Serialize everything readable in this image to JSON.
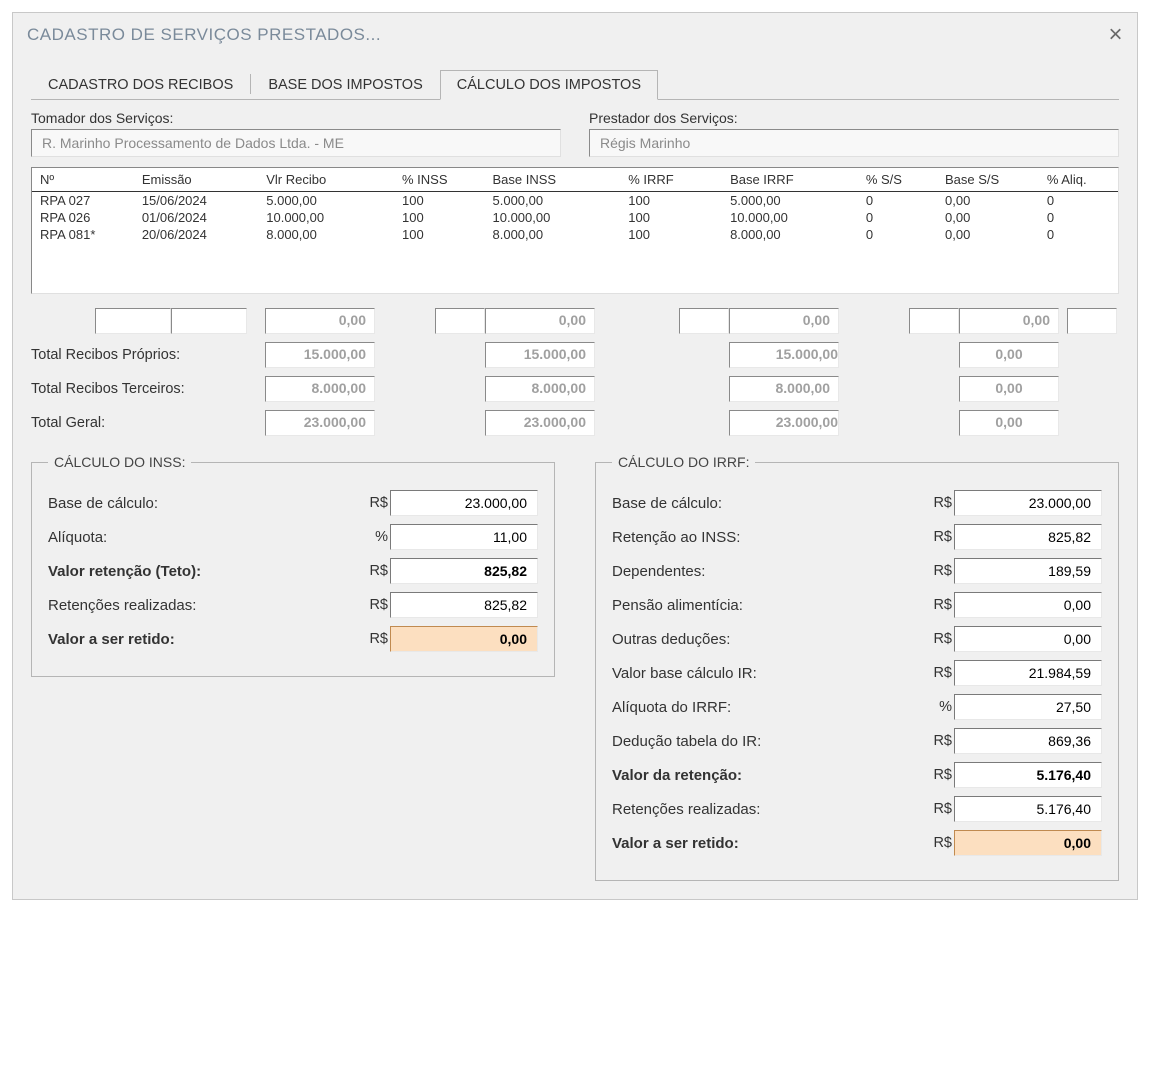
{
  "window": {
    "title": "CADASTRO DE SERVIÇOS PRESTADOS..."
  },
  "tabs": {
    "t1": "CADASTRO DOS RECIBOS",
    "t2": "BASE DOS IMPOSTOS",
    "t3": "CÁLCULO DOS IMPOSTOS",
    "active": "t3"
  },
  "identities": {
    "tomador_label": "Tomador dos Serviços:",
    "tomador_value": "R. Marinho Processamento de Dados Ltda. - ME",
    "prestador_label": "Prestador dos Serviços:",
    "prestador_value": "Régis Marinho"
  },
  "grid": {
    "columns": {
      "num": "Nº",
      "emissao": "Emissão",
      "vlr_recibo": "Vlr Recibo",
      "pct_inss": "% INSS",
      "base_inss": "Base INSS",
      "pct_irrf": "% IRRF",
      "base_irrf": "Base IRRF",
      "pct_ss": "% S/S",
      "base_ss": "Base S/S",
      "pct_aliq": "% Aliq."
    },
    "column_widths_pct": [
      9,
      11,
      12,
      8,
      12,
      9,
      12,
      7,
      9,
      7
    ],
    "rows": [
      {
        "num": "RPA 027",
        "emissao": "15/06/2024",
        "vlr_recibo": "5.000,00",
        "pct_inss": "100",
        "base_inss": "5.000,00",
        "pct_irrf": "100",
        "base_irrf": "5.000,00",
        "pct_ss": "0",
        "base_ss": "0,00",
        "pct_aliq": "0"
      },
      {
        "num": "RPA 026",
        "emissao": "01/06/2024",
        "vlr_recibo": "10.000,00",
        "pct_inss": "100",
        "base_inss": "10.000,00",
        "pct_irrf": "100",
        "base_irrf": "10.000,00",
        "pct_ss": "0",
        "base_ss": "0,00",
        "pct_aliq": "0"
      },
      {
        "num": "RPA 081*",
        "emissao": "20/06/2024",
        "vlr_recibo": "8.000,00",
        "pct_inss": "100",
        "base_inss": "8.000,00",
        "pct_irrf": "100",
        "base_irrf": "8.000,00",
        "pct_ss": "0",
        "base_ss": "0,00",
        "pct_aliq": "0"
      }
    ]
  },
  "totals": {
    "row0": {
      "vlr": "0,00",
      "binss": "0,00",
      "birrf": "0,00",
      "bss": "0,00"
    },
    "proprios_label": "Total Recibos Próprios:",
    "proprios": {
      "vlr": "15.000,00",
      "binss": "15.000,00",
      "birrf": "15.000,00",
      "bss": "0,00"
    },
    "terceiros_label": "Total Recibos Terceiros:",
    "terceiros": {
      "vlr": "8.000,00",
      "binss": "8.000,00",
      "birrf": "8.000,00",
      "bss": "0,00"
    },
    "geral_label": "Total Geral:",
    "geral": {
      "vlr": "23.000,00",
      "binss": "23.000,00",
      "birrf": "23.000,00",
      "bss": "0,00"
    }
  },
  "calc_inss": {
    "legend": "CÁLCULO DO INSS:",
    "base_label": "Base de cálculo:",
    "base_unit": "R$",
    "base_val": "23.000,00",
    "aliq_label": "Alíquota:",
    "aliq_unit": "%",
    "aliq_val": "11,00",
    "ret_teto_label": "Valor retenção (Teto):",
    "ret_teto_unit": "R$",
    "ret_teto_val": "825,82",
    "ret_real_label": "Retenções realizadas:",
    "ret_real_unit": "R$",
    "ret_real_val": "825,82",
    "valor_retido_label": "Valor a ser retido:",
    "valor_retido_unit": "R$",
    "valor_retido_val": "0,00"
  },
  "calc_irrf": {
    "legend": "CÁLCULO DO IRRF:",
    "base_label": "Base de cálculo:",
    "base_unit": "R$",
    "base_val": "23.000,00",
    "ret_inss_label": "Retenção ao INSS:",
    "ret_inss_unit": "R$",
    "ret_inss_val": "825,82",
    "dep_label": "Dependentes:",
    "dep_unit": "R$",
    "dep_val": "189,59",
    "pensao_label": "Pensão alimentícia:",
    "pensao_unit": "R$",
    "pensao_val": "0,00",
    "outras_label": "Outras deduções:",
    "outras_unit": "R$",
    "outras_val": "0,00",
    "baseir_label": "Valor base cálculo IR:",
    "baseir_unit": "R$",
    "baseir_val": "21.984,59",
    "aliq_label": "Alíquota do IRRF:",
    "aliq_unit": "%",
    "aliq_val": "27,50",
    "ded_label": "Dedução tabela do IR:",
    "ded_unit": "R$",
    "ded_val": "869,36",
    "valret_label": "Valor da retenção:",
    "valret_unit": "R$",
    "valret_val": "5.176,40",
    "retreal_label": "Retenções realizadas:",
    "retreal_unit": "R$",
    "retreal_val": "5.176,40",
    "valretido_label": "Valor a ser retido:",
    "valretido_unit": "R$",
    "valretido_val": "0,00"
  },
  "style": {
    "highlight_bg": "#fcdfc0",
    "window_bg": "#f0f0f0",
    "border": "#b5b5b5",
    "readonly_text": "#a0a0a0"
  }
}
